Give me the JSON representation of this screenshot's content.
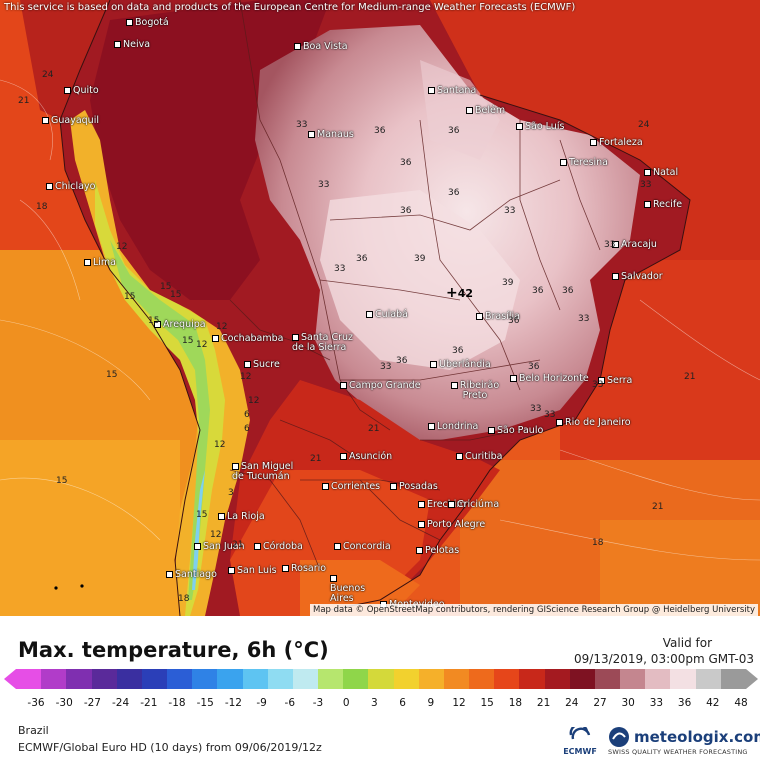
{
  "disclaimer": "This service is based on data and products of the European Centre for Medium-range Weather Forecasts (ECMWF)",
  "attribution": "Map data © OpenStreetMap contributors, rendering GIScience Research Group @ Heidelberg University",
  "title": "Max. temperature, 6h (°C)",
  "valid_label": "Valid for",
  "valid_time": "09/13/2019, 03:00pm GMT-03",
  "region": "Brazil",
  "model_line": "ECMWF/Global Euro HD (10 days) from 09/06/2019/12z",
  "ecmwf_logo_text": "ECMWF",
  "meteologix_name": "meteologix.com",
  "meteologix_tagline": "SWISS QUALITY WEATHER FORECASTING",
  "colorbar": {
    "ticks": [
      "-36",
      "-30",
      "-27",
      "-24",
      "-21",
      "-18",
      "-15",
      "-12",
      "-9",
      "-6",
      "-3",
      "0",
      "3",
      "6",
      "9",
      "12",
      "15",
      "18",
      "21",
      "24",
      "27",
      "30",
      "33",
      "36",
      "42",
      "48"
    ],
    "colors": [
      "#e64ee6",
      "#b13cc9",
      "#7f2fb0",
      "#5a2a9a",
      "#3a2fa0",
      "#2b3fb8",
      "#2b5ed6",
      "#2f82e6",
      "#3aa3ee",
      "#5ec4f2",
      "#8fdcf2",
      "#bfeaf0",
      "#b6e66e",
      "#8fd64a",
      "#d4d93a",
      "#f2d12e",
      "#f5b02a",
      "#f28a22",
      "#ee6a1c",
      "#e6461a",
      "#c8281a",
      "#a41a20",
      "#7e1222",
      "#9c4a57",
      "#c4868f",
      "#e3bcc2",
      "#f3e0e3",
      "#c9c9c9",
      "#9a9a9a"
    ]
  },
  "map": {
    "labels": [
      {
        "name": "Bogotá",
        "type": "city"
      },
      {
        "name": "Neiva",
        "type": "city"
      },
      {
        "name": "Boa Vista",
        "type": "city"
      },
      {
        "name": "Quito",
        "type": "city"
      },
      {
        "name": "Guayaquil",
        "type": "city"
      },
      {
        "name": "Santana",
        "type": "city"
      },
      {
        "name": "Belém",
        "type": "city"
      },
      {
        "name": "São Luís",
        "type": "city"
      },
      {
        "name": "Manaus",
        "type": "city"
      },
      {
        "name": "Fortaleza",
        "type": "city"
      },
      {
        "name": "Teresina",
        "type": "city"
      },
      {
        "name": "Natal",
        "type": "city"
      },
      {
        "name": "Chiclayo",
        "type": "city"
      },
      {
        "name": "Recife",
        "type": "city"
      },
      {
        "name": "Aracaju",
        "type": "city"
      },
      {
        "name": "Lima",
        "type": "city"
      },
      {
        "name": "Salvador",
        "type": "city"
      },
      {
        "name": "Cuiabá",
        "type": "city"
      },
      {
        "name": "Brasília",
        "type": "city"
      },
      {
        "name": "Arequipa",
        "type": "city"
      },
      {
        "name": "Cochabamba",
        "type": "city"
      },
      {
        "name": "Santa Cruz de la Sierra",
        "type": "city"
      },
      {
        "name": "Uberlândia",
        "type": "city"
      },
      {
        "name": "Sucre",
        "type": "city"
      },
      {
        "name": "Belo Horizonte",
        "type": "city"
      },
      {
        "name": "Campo Grande",
        "type": "city"
      },
      {
        "name": "Ribeirão Preto",
        "type": "city"
      },
      {
        "name": "Serra",
        "type": "city"
      },
      {
        "name": "Londrina",
        "type": "city"
      },
      {
        "name": "São Paulo",
        "type": "city"
      },
      {
        "name": "Rio de Janeiro",
        "type": "city"
      },
      {
        "name": "Asunción",
        "type": "city"
      },
      {
        "name": "Curitiba",
        "type": "city"
      },
      {
        "name": "San Miguel de Tucumán",
        "type": "city"
      },
      {
        "name": "Corrientes",
        "type": "city"
      },
      {
        "name": "Posadas",
        "type": "city"
      },
      {
        "name": "Erechim",
        "type": "city"
      },
      {
        "name": "Criciúma",
        "type": "city"
      },
      {
        "name": "La Rioja",
        "type": "city"
      },
      {
        "name": "Porto Alegre",
        "type": "city"
      },
      {
        "name": "San Juan",
        "type": "city"
      },
      {
        "name": "Córdoba",
        "type": "city"
      },
      {
        "name": "Concordia",
        "type": "city"
      },
      {
        "name": "Pelotas",
        "type": "city"
      },
      {
        "name": "Rosario",
        "type": "city"
      },
      {
        "name": "Santiago",
        "type": "city"
      },
      {
        "name": "San Luis",
        "type": "city"
      },
      {
        "name": "Buenos Aires",
        "type": "city"
      },
      {
        "name": "Montevideo",
        "type": "city"
      }
    ],
    "isotherm_values": [
      "24",
      "21",
      "18",
      "15",
      "15",
      "15",
      "12",
      "12",
      "12",
      "12",
      "6",
      "12",
      "33",
      "36",
      "36",
      "36",
      "36",
      "36",
      "33",
      "33",
      "36",
      "39",
      "39",
      "36",
      "36",
      "36",
      "33",
      "36",
      "33",
      "33",
      "36",
      "36",
      "33",
      "33",
      "33",
      "33",
      "33",
      "24",
      "21",
      "21",
      "21",
      "21",
      "18",
      "21",
      "15",
      "15",
      "18",
      "15",
      "12",
      "15",
      "3",
      "6",
      "12",
      "15"
    ],
    "max_marker": "42"
  }
}
